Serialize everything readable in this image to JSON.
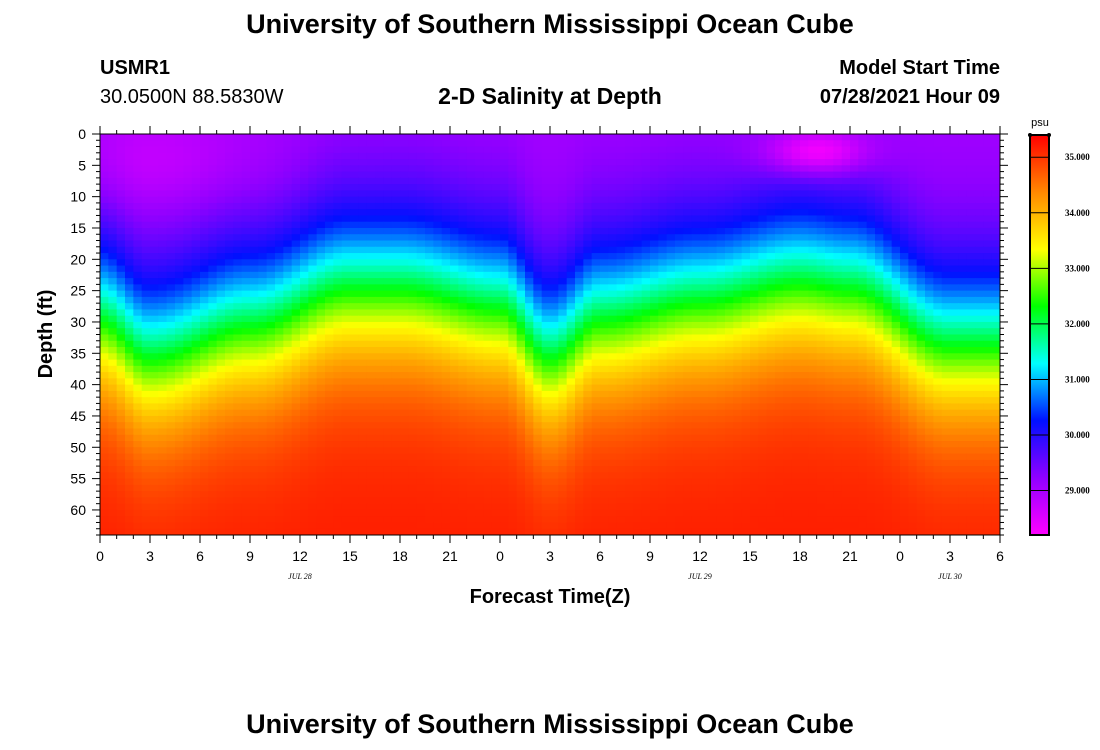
{
  "header": {
    "title": "University of Southern Mississippi Ocean Cube",
    "station": "USMR1",
    "coords": "30.0500N  88.5830W",
    "subtitle": "2-D Salinity at Depth",
    "model_start_label": "Model Start Time",
    "model_start_value": "07/28/2021 Hour 09"
  },
  "footer": {
    "title": "University of Southern Mississippi Ocean Cube"
  },
  "colors": {
    "stops": [
      "#ff00ff",
      "#9000ff",
      "#0010ff",
      "#00ffff",
      "#00ff00",
      "#ffff00",
      "#ff8800",
      "#ff0000"
    ]
  },
  "chart_data": {
    "type": "heatmap",
    "title": "2-D Salinity at Depth",
    "xlabel": "Forecast Time(Z)",
    "ylabel": "Depth (ft)",
    "x_ticks": [
      "0",
      "3",
      "6",
      "9",
      "12",
      "15",
      "18",
      "21",
      "0",
      "3",
      "6",
      "9",
      "12",
      "15",
      "18",
      "21",
      "0",
      "3",
      "6"
    ],
    "x_range_hours": [
      0,
      54
    ],
    "date_labels": [
      {
        "text": "JUL 28",
        "hour": 12
      },
      {
        "text": "JUL 29",
        "hour": 36
      },
      {
        "text": "JUL 30",
        "hour": 51
      }
    ],
    "y_ticks": [
      0,
      5,
      10,
      15,
      20,
      25,
      30,
      35,
      40,
      45,
      50,
      55,
      60
    ],
    "y_range": [
      0,
      64
    ],
    "colorbar": {
      "unit": "psu",
      "range": [
        28.2,
        35.4
      ],
      "ticks": [
        "29.000",
        "30.000",
        "31.000",
        "32.000",
        "33.000",
        "34.000",
        "35.000"
      ],
      "tick_values": [
        29,
        30,
        31,
        32,
        33,
        34,
        35
      ]
    },
    "thermocline_depth_ft": {
      "hours": [
        0,
        3,
        9,
        15,
        18,
        24,
        27,
        30,
        36,
        42,
        45,
        51,
        54
      ],
      "depth": [
        21,
        27,
        22,
        16,
        16,
        19,
        27,
        21,
        18,
        15,
        16,
        25,
        25
      ]
    },
    "surface_salinity_psu": 29.0,
    "deep_salinity_psu": 35.2,
    "surface_low_patch": {
      "hour": 43,
      "depth_ft": 3,
      "value_psu": 28.3
    }
  }
}
